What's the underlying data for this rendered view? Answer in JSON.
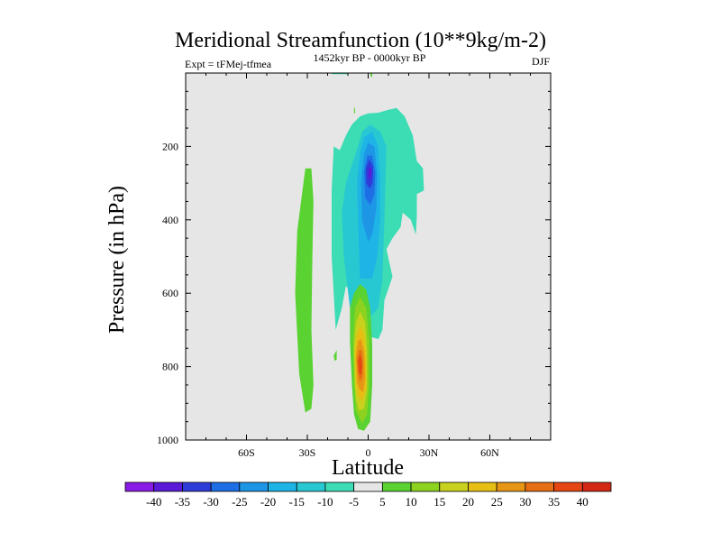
{
  "chart_data": {
    "type": "contour",
    "title": "Meridional Streamfunction (10**9kg/m-2)",
    "left_subtitle": "Expt = tFMej-tfmea",
    "center_subtitle": "1452kyr BP - 0000kyr BP",
    "right_subtitle": "DJF",
    "xlabel": "Latitude",
    "ylabel": "Pressure (in hPa)",
    "xlim": [
      -90,
      90
    ],
    "ylim": [
      1000,
      0
    ],
    "x_ticks": [
      {
        "value": -60,
        "label": "60S"
      },
      {
        "value": -30,
        "label": "30S"
      },
      {
        "value": 0,
        "label": "0"
      },
      {
        "value": 30,
        "label": "30N"
      },
      {
        "value": 60,
        "label": "60N"
      }
    ],
    "y_ticks": [
      {
        "value": 200,
        "label": "200"
      },
      {
        "value": 400,
        "label": "400"
      },
      {
        "value": 600,
        "label": "600"
      },
      {
        "value": 800,
        "label": "800"
      },
      {
        "value": 1000,
        "label": "1000"
      }
    ],
    "colorbar": {
      "levels": [
        -40,
        -35,
        -30,
        -25,
        -20,
        -15,
        -10,
        -5,
        5,
        10,
        15,
        20,
        25,
        30,
        35,
        40
      ],
      "colors": [
        "#8a1ae6",
        "#5a1ad8",
        "#2f3cd8",
        "#1e6ee6",
        "#1e96e6",
        "#1eb4e6",
        "#28c8d2",
        "#3cdcb4",
        "#e6e6e6",
        "#5ad232",
        "#8cd21e",
        "#c8d21e",
        "#e6be14",
        "#e69614",
        "#e66e14",
        "#e64614",
        "#d22814"
      ]
    },
    "series": [
      {
        "name": "polygons",
        "items": [
          {
            "level": -5,
            "points": [
              [
                -18,
                1
              ],
              [
                -18,
                3
              ],
              [
                -10,
                3
              ],
              [
                -10,
                1
              ]
            ]
          },
          {
            "level": 5,
            "points": [
              [
                -31,
                925
              ],
              [
                -34,
                820
              ],
              [
                -36,
                600
              ],
              [
                -35,
                430
              ],
              [
                -31,
                260
              ],
              [
                -28,
                260
              ],
              [
                -27,
                350
              ],
              [
                -27.5,
                500
              ],
              [
                -28,
                700
              ],
              [
                -27,
                850
              ],
              [
                -28,
                915
              ]
            ]
          },
          {
            "level": 5,
            "points": [
              [
                1,
                1
              ],
              [
                2,
                1
              ],
              [
                2,
                10
              ],
              [
                1.3,
                10
              ]
            ]
          },
          {
            "level": 5,
            "points": [
              [
                -7,
                95
              ],
              [
                -6.5,
                95
              ],
              [
                -6.5,
                110
              ],
              [
                -7,
                110
              ]
            ]
          },
          {
            "level": 5,
            "points": [
              [
                -15.5,
                755
              ],
              [
                -15.5,
                780
              ],
              [
                -16.5,
                785
              ],
              [
                -17,
                770
              ]
            ]
          },
          {
            "level": -5,
            "points": [
              [
                -16,
                700
              ],
              [
                -18,
                500
              ],
              [
                -18,
                320
              ],
              [
                -17,
                200
              ],
              [
                -14,
                210
              ],
              [
                -11,
                170
              ],
              [
                -8,
                140
              ],
              [
                -4,
                118
              ],
              [
                0,
                110
              ],
              [
                5,
                108
              ],
              [
                10,
                100
              ],
              [
                14,
                95
              ],
              [
                18,
                118
              ],
              [
                22,
                170
              ],
              [
                24,
                240
              ],
              [
                27,
                260
              ],
              [
                27.5,
                320
              ],
              [
                24,
                330
              ],
              [
                24,
                390
              ],
              [
                23.5,
                440
              ],
              [
                21,
                400
              ],
              [
                17,
                380
              ],
              [
                16,
                420
              ],
              [
                12,
                450
              ],
              [
                9,
                480
              ],
              [
                12,
                555
              ],
              [
                8,
                620
              ],
              [
                7,
                700
              ],
              [
                5,
                725
              ],
              [
                2,
                720
              ],
              [
                -2,
                760
              ],
              [
                -5,
                720
              ],
              [
                -8,
                600
              ],
              [
                -11,
                580
              ],
              [
                -13,
                640
              ],
              [
                -15,
                680
              ]
            ]
          },
          {
            "level": -10,
            "points": [
              [
                -9,
                640
              ],
              [
                -12,
                500
              ],
              [
                -13,
                380
              ],
              [
                -11,
                300
              ],
              [
                -8,
                250
              ],
              [
                -5,
                200
              ],
              [
                -3,
                160
              ],
              [
                1,
                140
              ],
              [
                6,
                160
              ],
              [
                9,
                200
              ],
              [
                8.5,
                300
              ],
              [
                8,
                400
              ],
              [
                7,
                560
              ],
              [
                5,
                640
              ],
              [
                1,
                665
              ],
              [
                -2,
                640
              ],
              [
                -4,
                600
              ]
            ]
          },
          {
            "level": -15,
            "points": [
              [
                -4,
                560
              ],
              [
                -5,
                400
              ],
              [
                -5.5,
                300
              ],
              [
                -4,
                220
              ],
              [
                -2,
                175
              ],
              [
                2,
                160
              ],
              [
                5,
                200
              ],
              [
                6,
                300
              ],
              [
                6,
                400
              ],
              [
                4.5,
                500
              ],
              [
                2,
                560
              ]
            ]
          },
          {
            "level": -20,
            "points": [
              [
                -3,
                400
              ],
              [
                -3.5,
                300
              ],
              [
                -2,
                220
              ],
              [
                0,
                190
              ],
              [
                3,
                200
              ],
              [
                4.5,
                280
              ],
              [
                4,
                370
              ],
              [
                2,
                440
              ],
              [
                0,
                460
              ]
            ]
          },
          {
            "level": -25,
            "points": [
              [
                -1.5,
                340
              ],
              [
                -2,
                270
              ],
              [
                -0.5,
                225
              ],
              [
                2,
                225
              ],
              [
                3.5,
                270
              ],
              [
                3,
                330
              ],
              [
                1,
                360
              ]
            ]
          },
          {
            "level": -30,
            "points": [
              [
                -1,
                300
              ],
              [
                -1.2,
                260
              ],
              [
                0.5,
                235
              ],
              [
                2.5,
                255
              ],
              [
                2.2,
                300
              ],
              [
                0.8,
                315
              ]
            ]
          },
          {
            "level": -35,
            "points": [
              [
                0,
                280
              ],
              [
                0.3,
                255
              ],
              [
                1.6,
                262
              ],
              [
                1.4,
                285
              ],
              [
                0.6,
                292
              ]
            ]
          },
          {
            "level": 5,
            "points": [
              [
                -8,
                850
              ],
              [
                -9,
                730
              ],
              [
                -9,
                640
              ],
              [
                -7,
                600
              ],
              [
                -4,
                575
              ],
              [
                -1,
                590
              ],
              [
                1,
                640
              ],
              [
                2,
                740
              ],
              [
                2,
                850
              ],
              [
                1,
                950
              ],
              [
                -2,
                975
              ],
              [
                -5,
                970
              ],
              [
                -7,
                930
              ]
            ]
          },
          {
            "level": 10,
            "points": [
              [
                -7,
                850
              ],
              [
                -7.5,
                730
              ],
              [
                -6.5,
                640
              ],
              [
                -4,
                610
              ],
              [
                -1,
                640
              ],
              [
                0.5,
                730
              ],
              [
                0.5,
                850
              ],
              [
                -0.5,
                930
              ],
              [
                -3,
                955
              ],
              [
                -6,
                920
              ]
            ]
          },
          {
            "level": 15,
            "points": [
              [
                -6.5,
                850
              ],
              [
                -7,
                750
              ],
              [
                -6,
                680
              ],
              [
                -4,
                650
              ],
              [
                -1.5,
                680
              ],
              [
                -0.5,
                760
              ],
              [
                -0.5,
                860
              ],
              [
                -2,
                915
              ],
              [
                -4.5,
                920
              ],
              [
                -6,
                890
              ]
            ]
          },
          {
            "level": 20,
            "points": [
              [
                -6,
                850
              ],
              [
                -6.5,
                760
              ],
              [
                -5.5,
                710
              ],
              [
                -4,
                690
              ],
              [
                -2,
                710
              ],
              [
                -1,
                780
              ],
              [
                -1,
                860
              ],
              [
                -3,
                895
              ],
              [
                -5,
                880
              ]
            ]
          },
          {
            "level": 25,
            "points": [
              [
                -5.5,
                840
              ],
              [
                -6,
                770
              ],
              [
                -5,
                730
              ],
              [
                -3.5,
                725
              ],
              [
                -2,
                760
              ],
              [
                -1.5,
                830
              ],
              [
                -2.5,
                870
              ],
              [
                -4.5,
                860
              ]
            ]
          },
          {
            "level": 30,
            "points": [
              [
                -5,
                820
              ],
              [
                -5.5,
                780
              ],
              [
                -4.5,
                755
              ],
              [
                -3.3,
                755
              ],
              [
                -2.5,
                790
              ],
              [
                -2.8,
                830
              ],
              [
                -4,
                840
              ]
            ]
          },
          {
            "level": 35,
            "points": [
              [
                -4.6,
                810
              ],
              [
                -5,
                785
              ],
              [
                -4.2,
                770
              ],
              [
                -3.5,
                775
              ],
              [
                -3,
                800
              ],
              [
                -3.4,
                820
              ],
              [
                -4.2,
                822
              ]
            ]
          }
        ]
      }
    ]
  }
}
